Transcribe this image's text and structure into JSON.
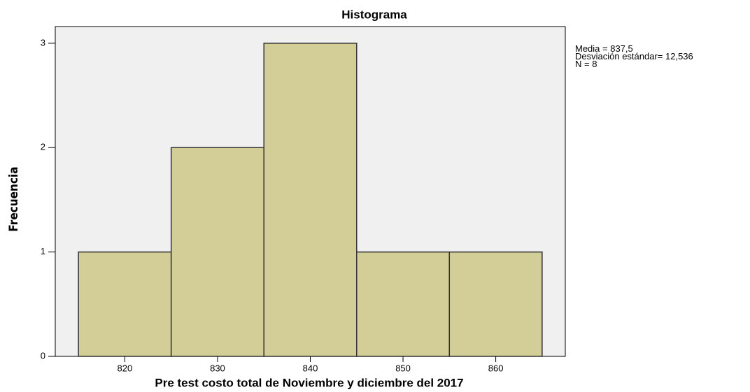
{
  "chart_data": {
    "type": "histogram",
    "title": "Histograma",
    "x_label": "Pre test costo total de Noviembre y diciembre del 2017",
    "y_label": "Frecuencia",
    "bins": [
      815,
      825,
      835,
      845,
      855,
      865
    ],
    "counts": [
      1,
      2,
      3,
      1,
      1
    ],
    "color": "#d3ce97",
    "xlim": [
      812.5,
      867.5
    ],
    "xticks": [
      820,
      830,
      840,
      850,
      860
    ],
    "ylim": [
      0,
      3.16
    ],
    "yticks": [
      0,
      1,
      2,
      3
    ],
    "stats": [
      "Media = 837,5",
      "Desviación estándar= 12,536",
      "N = 8"
    ]
  }
}
